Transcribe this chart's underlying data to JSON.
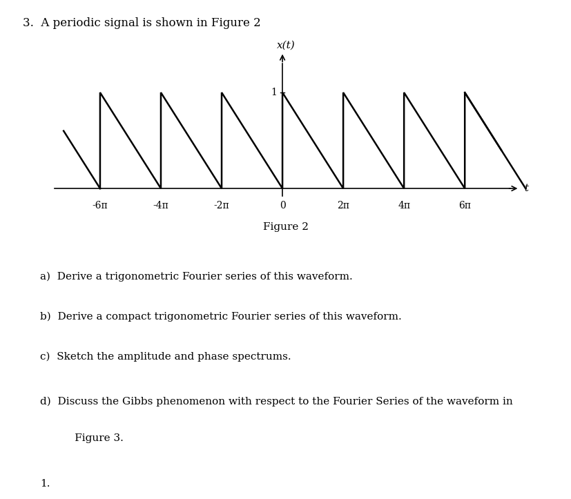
{
  "title_text": "3.  A periodic signal is shown in Figure 2",
  "figure_caption": "Figure 2",
  "ylabel": "x(t)",
  "xlabel": "t",
  "xtick_labels": [
    "-6π",
    "-4π",
    "-2π",
    "0",
    "2π",
    "4π",
    "6π"
  ],
  "xtick_values": [
    -6,
    -4,
    -2,
    0,
    2,
    4,
    6
  ],
  "ytick_value": 1,
  "period": 2,
  "amplitude": 1,
  "wave_color": "#000000",
  "background_color": "#ffffff",
  "q_a": "a)  Derive a trigonometric Fourier series of this waveform.",
  "q_b": "b)  Derive a compact trigonometric Fourier series of this waveform.",
  "q_c": "c)  Sketch the amplitude and phase spectrums.",
  "q_d1": "d)  Discuss the Gibbs phenomenon with respect to the Fourier Series of the waveform in",
  "q_d2": "      Figure 3.",
  "font_size_title": 12,
  "font_size_body": 11,
  "font_size_tick": 10
}
